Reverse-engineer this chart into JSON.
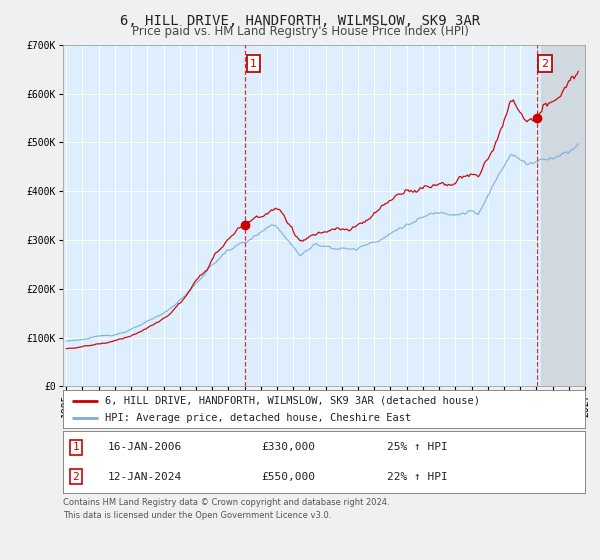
{
  "title": "6, HILL DRIVE, HANDFORTH, WILMSLOW, SK9 3AR",
  "subtitle": "Price paid vs. HM Land Registry's House Price Index (HPI)",
  "legend_line1": "6, HILL DRIVE, HANDFORTH, WILMSLOW, SK9 3AR (detached house)",
  "legend_line2": "HPI: Average price, detached house, Cheshire East",
  "annotation1_label": "1",
  "annotation1_date": "16-JAN-2006",
  "annotation1_price": "£330,000",
  "annotation1_hpi": "25% ↑ HPI",
  "annotation2_label": "2",
  "annotation2_date": "12-JAN-2024",
  "annotation2_price": "£550,000",
  "annotation2_hpi": "22% ↑ HPI",
  "footnote1": "Contains HM Land Registry data © Crown copyright and database right 2024.",
  "footnote2": "This data is licensed under the Open Government Licence v3.0.",
  "date_marker1": 2006.04,
  "date_marker2": 2024.04,
  "price_marker1": 330000,
  "price_marker2": 550000,
  "start_year": 1995,
  "end_year": 2027,
  "ylim_max": 700000,
  "red_line_color": "#cc0000",
  "blue_line_color": "#7aaddb",
  "bg_color": "#ddeeff",
  "grid_color": "#ffffff",
  "fig_bg_color": "#f0f0f0",
  "title_fontsize": 10,
  "subtitle_fontsize": 8.5,
  "axis_label_fontsize": 7,
  "legend_fontsize": 7.5,
  "table_fontsize": 8,
  "footnote_fontsize": 6.0
}
